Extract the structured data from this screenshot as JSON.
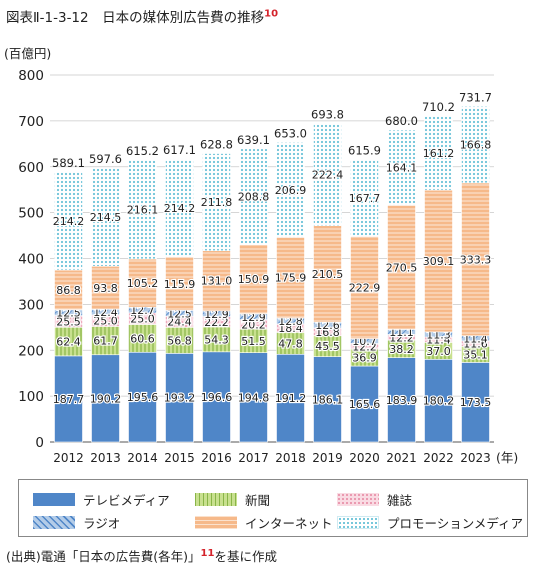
{
  "title": "図表Ⅱ-1-3-12　日本の媒体別広告費の推移",
  "title_ref": "10",
  "source_note": "(出典)電通「日本の広告費(各年)」",
  "source_ref": "11",
  "source_note_suffix": "を基に作成",
  "chart_data": {
    "type": "bar",
    "stacked": true,
    "ylabel": "(百億円)",
    "xlabel": "(年)",
    "ylim": [
      0,
      800
    ],
    "yticks": [
      0,
      100,
      200,
      300,
      400,
      500,
      600,
      700,
      800
    ],
    "grid": true,
    "legend_position": "bottom",
    "categories": [
      "2012",
      "2013",
      "2014",
      "2015",
      "2016",
      "2017",
      "2018",
      "2019",
      "2020",
      "2021",
      "2022",
      "2023"
    ],
    "series": [
      {
        "name": "テレビメディア",
        "color": "#4f86c8",
        "values": [
          187.7,
          190.2,
          195.6,
          193.2,
          196.6,
          194.8,
          191.2,
          186.1,
          165.6,
          183.9,
          180.2,
          173.5
        ]
      },
      {
        "name": "新聞",
        "color": "#b5d67a",
        "values": [
          62.4,
          61.7,
          60.6,
          56.8,
          54.3,
          51.5,
          47.8,
          45.5,
          36.9,
          38.2,
          37.0,
          35.1
        ]
      },
      {
        "name": "雑誌",
        "color": "#f6c9d4",
        "values": [
          25.5,
          25.0,
          25.0,
          24.4,
          22.2,
          20.2,
          18.4,
          16.8,
          12.2,
          12.2,
          11.4,
          11.6
        ]
      },
      {
        "name": "ラジオ",
        "color": "#b3cce8",
        "values": [
          12.5,
          12.4,
          12.7,
          12.5,
          12.9,
          12.9,
          12.8,
          12.6,
          10.7,
          11.1,
          11.3,
          11.4
        ]
      },
      {
        "name": "インターネット",
        "color": "#f9c29a",
        "values": [
          86.8,
          93.8,
          105.2,
          115.9,
          131.0,
          150.9,
          175.9,
          210.5,
          222.9,
          270.5,
          309.1,
          333.3
        ]
      },
      {
        "name": "プロモーションメディア",
        "color": "#a8dde8",
        "values": [
          214.2,
          214.5,
          216.1,
          214.2,
          211.8,
          208.8,
          206.9,
          222.4,
          167.7,
          164.1,
          161.2,
          166.8
        ]
      }
    ],
    "totals": [
      589.1,
      597.6,
      615.2,
      617.1,
      628.8,
      639.1,
      653.0,
      693.8,
      615.9,
      680.0,
      710.2,
      731.7
    ]
  }
}
